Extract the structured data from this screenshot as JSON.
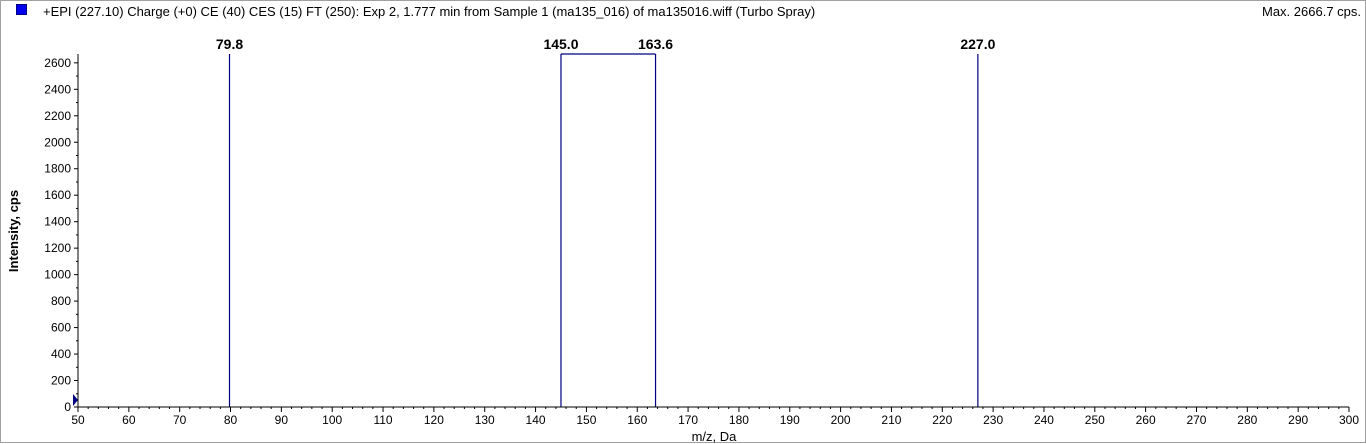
{
  "header": {
    "title": "+EPI (227.10) Charge (+0) CE (40) CES (15) FT (250): Exp 2, 1.777 min from Sample 1 (ma135_016) of ma135016.wiff (Turbo Spray)",
    "max_label": "Max. 2666.7 cps.",
    "legend_color": "#0000ee"
  },
  "chart_data": {
    "type": "bar",
    "xlabel": "m/z, Da",
    "ylabel": "Intensity, cps",
    "xlim": [
      50,
      300
    ],
    "ylim": [
      0,
      2666.7
    ],
    "x_ticks": [
      50,
      60,
      70,
      80,
      90,
      100,
      110,
      120,
      130,
      140,
      150,
      160,
      170,
      180,
      190,
      200,
      210,
      220,
      230,
      240,
      250,
      260,
      270,
      280,
      290,
      300
    ],
    "y_ticks": [
      0,
      200,
      400,
      600,
      800,
      1000,
      1200,
      1400,
      1600,
      1800,
      2000,
      2200,
      2400,
      2600
    ],
    "grid": false,
    "line_color": "#000080",
    "peaks": [
      {
        "x": 79.8,
        "y": 2666.7,
        "label": "79.8"
      },
      {
        "x": 145.0,
        "y": 2666.7,
        "label": "145.0"
      },
      {
        "x": 163.6,
        "y": 2666.7,
        "label": "163.6"
      },
      {
        "x": 227.0,
        "y": 2666.7,
        "label": "227.0"
      }
    ]
  }
}
